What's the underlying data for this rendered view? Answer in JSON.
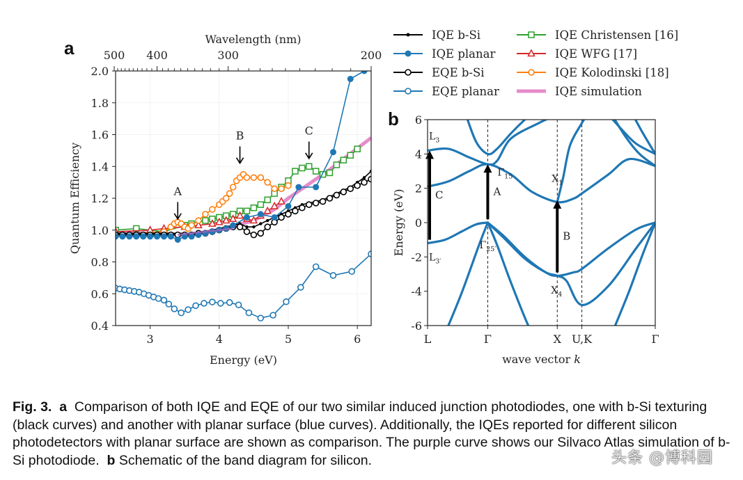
{
  "chart_data": [
    {
      "panel": "a",
      "type": "line",
      "title": "",
      "xlabel": "Energy (eV)",
      "ylabel": "Quantum Efficiency",
      "x2label": "Wavelength (nm)",
      "xlim": [
        2.5,
        6.2
      ],
      "ylim": [
        0.4,
        2.0
      ],
      "xticks": [
        3,
        4,
        5,
        6
      ],
      "yticks": [
        0.4,
        0.6,
        0.8,
        1.0,
        1.2,
        1.4,
        1.6,
        1.8,
        2.0
      ],
      "x2ticks": [
        {
          "label": "500",
          "energy": 2.48
        },
        {
          "label": "400",
          "energy": 3.1
        },
        {
          "label": "300",
          "energy": 4.13
        },
        {
          "label": "200",
          "energy": 6.2
        }
      ],
      "grid": true,
      "legend_position": "top-right (outside)",
      "annotations": [
        {
          "label": "A",
          "x": 3.4,
          "y_text": 1.22,
          "arrow_to": 1.07
        },
        {
          "label": "B",
          "x": 4.3,
          "y_text": 1.57,
          "arrow_to": 1.42
        },
        {
          "label": "C",
          "x": 5.3,
          "y_text": 1.6,
          "arrow_to": 1.45
        }
      ],
      "series": [
        {
          "name": "IQE b-Si",
          "color": "#000000",
          "marker": "dot",
          "x": [
            2.5,
            2.6,
            2.7,
            2.8,
            2.9,
            3.0,
            3.1,
            3.2,
            3.3,
            3.4,
            3.5,
            3.6,
            3.7,
            3.8,
            3.9,
            4.0,
            4.1,
            4.2,
            4.3,
            4.4,
            4.5,
            4.6,
            4.7,
            4.8,
            4.9,
            5.0,
            5.1,
            5.2,
            5.3,
            5.4,
            5.5,
            5.6,
            5.7,
            5.8,
            5.9,
            6.0,
            6.1,
            6.2
          ],
          "y": [
            0.98,
            0.98,
            0.98,
            0.98,
            0.98,
            0.98,
            0.98,
            0.98,
            0.98,
            0.98,
            0.98,
            0.98,
            0.985,
            0.99,
            1.0,
            1.01,
            1.02,
            1.03,
            1.04,
            1.02,
            1.02,
            1.04,
            1.06,
            1.08,
            1.1,
            1.12,
            1.14,
            1.16,
            1.17,
            1.18,
            1.19,
            1.21,
            1.23,
            1.25,
            1.27,
            1.3,
            1.33,
            1.37
          ]
        },
        {
          "name": "IQE planar",
          "color": "#1f77b4",
          "marker": "filled-circle",
          "x": [
            2.5,
            2.6,
            2.7,
            2.8,
            2.9,
            3.0,
            3.1,
            3.2,
            3.3,
            3.4,
            3.5,
            3.6,
            3.7,
            3.8,
            3.9,
            4.0,
            4.1,
            4.2,
            4.4,
            4.6,
            4.8,
            5.0,
            5.15,
            5.4,
            5.65,
            5.9,
            6.1
          ],
          "y": [
            0.96,
            0.96,
            0.96,
            0.96,
            0.96,
            0.96,
            0.96,
            0.96,
            0.96,
            0.94,
            0.96,
            0.96,
            0.97,
            0.98,
            0.99,
            1.0,
            1.01,
            1.03,
            1.08,
            1.1,
            1.08,
            1.15,
            1.27,
            1.27,
            1.49,
            1.95,
            2.0
          ]
        },
        {
          "name": "EQE b-Si",
          "color": "#000000",
          "marker": "open-circle",
          "x": [
            2.5,
            2.6,
            2.7,
            2.8,
            2.9,
            3.0,
            3.1,
            3.2,
            3.3,
            3.4,
            3.5,
            3.6,
            3.7,
            3.8,
            3.9,
            4.0,
            4.1,
            4.2,
            4.3,
            4.4,
            4.5,
            4.6,
            4.7,
            4.8,
            4.9,
            5.0,
            5.1,
            5.2,
            5.3,
            5.4,
            5.5,
            5.6,
            5.7,
            5.8,
            5.9,
            6.0,
            6.1,
            6.2
          ],
          "y": [
            0.97,
            0.97,
            0.97,
            0.97,
            0.97,
            0.97,
            0.97,
            0.97,
            0.97,
            0.97,
            0.97,
            0.97,
            0.98,
            0.98,
            0.99,
            1.0,
            1.01,
            1.02,
            1.02,
            0.99,
            0.97,
            0.98,
            1.02,
            1.05,
            1.08,
            1.1,
            1.12,
            1.14,
            1.16,
            1.17,
            1.18,
            1.2,
            1.22,
            1.24,
            1.26,
            1.28,
            1.3,
            1.32
          ]
        },
        {
          "name": "EQE planar",
          "color": "#1f77b4",
          "marker": "open-circle",
          "x": [
            2.5,
            2.56,
            2.63,
            2.7,
            2.77,
            2.84,
            2.91,
            2.98,
            3.05,
            3.12,
            3.2,
            3.27,
            3.35,
            3.45,
            3.55,
            3.66,
            3.78,
            3.9,
            4.02,
            4.15,
            4.28,
            4.43,
            4.6,
            4.78,
            4.97,
            5.18,
            5.4,
            5.65,
            5.92,
            6.2
          ],
          "y": [
            0.635,
            0.63,
            0.625,
            0.62,
            0.615,
            0.61,
            0.6,
            0.59,
            0.58,
            0.57,
            0.56,
            0.535,
            0.505,
            0.48,
            0.5,
            0.525,
            0.54,
            0.548,
            0.54,
            0.545,
            0.53,
            0.48,
            0.447,
            0.465,
            0.55,
            0.64,
            0.77,
            0.715,
            0.74,
            0.85
          ]
        },
        {
          "name": "IQE Christensen [16]",
          "color": "#2ca02c",
          "marker": "open-square",
          "x": [
            2.5,
            2.8,
            3.2,
            3.5,
            3.6,
            3.8,
            3.9,
            4.0,
            4.1,
            4.2,
            4.3,
            4.4,
            4.5,
            4.6,
            4.7,
            4.8,
            4.9,
            5.0,
            5.1,
            5.2,
            5.3,
            5.4,
            5.5,
            5.6,
            5.7,
            5.8,
            5.9,
            6.0
          ],
          "y": [
            1.0,
            1.01,
            0.99,
            1.03,
            1.04,
            1.06,
            1.07,
            1.08,
            1.09,
            1.1,
            1.12,
            1.12,
            1.14,
            1.16,
            1.19,
            1.23,
            1.27,
            1.31,
            1.37,
            1.39,
            1.4,
            1.37,
            1.35,
            1.36,
            1.41,
            1.44,
            1.47,
            1.51
          ]
        },
        {
          "name": "IQE WFG [17]",
          "color": "#d62728",
          "marker": "open-triangle",
          "x": [
            2.5,
            3.0,
            3.2,
            3.5,
            3.7,
            3.9,
            4.0,
            4.1,
            4.2,
            4.3,
            4.4,
            4.5,
            4.6,
            4.7,
            4.8,
            4.9
          ],
          "y": [
            0.99,
            1.0,
            1.01,
            1.02,
            1.03,
            1.04,
            1.05,
            1.06,
            1.07,
            1.09,
            1.07,
            1.06,
            1.09,
            1.12,
            1.15,
            1.18
          ]
        },
        {
          "name": "IQE Kolodinski [18]",
          "color": "#ff7f0e",
          "marker": "open-circle",
          "x": [
            2.5,
            3.2,
            3.3,
            3.35,
            3.4,
            3.45,
            3.5,
            3.55,
            3.6,
            3.7,
            3.8,
            3.9,
            4.0,
            4.05,
            4.1,
            4.15,
            4.2,
            4.25,
            4.3,
            4.35,
            4.4,
            4.5,
            4.6,
            4.7,
            4.8,
            4.9,
            5.0
          ],
          "y": [
            0.97,
            0.99,
            1.02,
            1.04,
            1.05,
            1.04,
            1.02,
            1.01,
            1.03,
            1.06,
            1.1,
            1.13,
            1.16,
            1.18,
            1.2,
            1.23,
            1.27,
            1.31,
            1.33,
            1.35,
            1.33,
            1.33,
            1.33,
            1.3,
            1.26,
            1.26,
            1.28
          ]
        },
        {
          "name": "IQE simulation",
          "color": "#e377c2",
          "marker": "none",
          "x": [
            2.5,
            3.0,
            3.5,
            4.0,
            4.5,
            4.8,
            5.0,
            5.3,
            5.6,
            5.9,
            6.2
          ],
          "y": [
            0.98,
            0.98,
            0.97,
            1.0,
            1.06,
            1.13,
            1.2,
            1.29,
            1.38,
            1.48,
            1.58
          ]
        }
      ],
      "purple_overlay_color": "#9467bd"
    },
    {
      "panel": "b",
      "type": "line",
      "title": "",
      "xlabel": "wave vector k",
      "ylabel": "Energy (eV)",
      "ylim": [
        -6,
        6
      ],
      "yticks": [
        -6,
        -4,
        -2,
        0,
        2,
        4,
        6
      ],
      "xticks": [
        "L",
        "Γ",
        "X",
        "U,K",
        "Γ"
      ],
      "k_points": {
        "L": 0.0,
        "Γ": 0.866,
        "X": 1.866,
        "U,K": 2.22,
        "Γ_end": 3.276
      },
      "grid": false,
      "band_color": "#1f77b4",
      "labels": [
        {
          "text": "L3",
          "sub": "3",
          "k": 0.0,
          "E": 4.6
        },
        {
          "text": "Γ15",
          "sub": "15",
          "k": 0.866,
          "E": 3.3
        },
        {
          "text": "X1",
          "sub": "1",
          "k": 1.866,
          "E": 2.3
        },
        {
          "text": "L3'",
          "sub": "3′",
          "k": 0.0,
          "E": -1.8
        },
        {
          "text": "Γ25'",
          "sub": "25′",
          "k": 0.866,
          "E": -1.1
        },
        {
          "text": "X4",
          "sub": "4",
          "k": 1.866,
          "E": -3.9
        }
      ],
      "transitions": [
        {
          "label": "C",
          "k": 0.03,
          "from": -1.0,
          "to": 4.2
        },
        {
          "label": "A",
          "k": 0.866,
          "from": 0.2,
          "to": 3.4
        },
        {
          "label": "B",
          "k": 1.866,
          "from": -2.9,
          "to": 1.3
        }
      ],
      "series": [
        {
          "name": "valence-1",
          "k": [
            0,
            0.25,
            0.5,
            0.7,
            0.866
          ],
          "E": [
            -1.2,
            -1.0,
            -0.5,
            -0.1,
            0.0
          ]
        },
        {
          "name": "valence-1b",
          "k": [
            0.866,
            1.1,
            1.4,
            1.7,
            1.866,
            2.1,
            2.22,
            2.6,
            3.0,
            3.276
          ],
          "E": [
            0.0,
            -0.8,
            -2.0,
            -2.9,
            -3.1,
            -2.9,
            -2.7,
            -1.5,
            -0.4,
            0.0
          ]
        },
        {
          "name": "valence-2",
          "k": [
            0.866,
            1.1,
            1.4,
            1.7,
            1.866,
            2.0,
            2.22,
            2.6,
            3.0,
            3.276
          ],
          "E": [
            0.0,
            -0.9,
            -2.1,
            -2.9,
            -3.1,
            -3.4,
            -4.8,
            -3.7,
            -1.5,
            0.0
          ]
        },
        {
          "name": "valence-3",
          "k": [
            0.866,
            1.0,
            1.2,
            1.45,
            1.55
          ],
          "E": [
            0.0,
            -1.3,
            -3.5,
            -6.0,
            -6.5
          ]
        },
        {
          "name": "valence-4",
          "k": [
            0.866,
            0.75,
            0.5,
            0.3
          ],
          "E": [
            0.0,
            -1.2,
            -4.0,
            -6.0
          ]
        },
        {
          "name": "valence-5",
          "k": [
            3.276,
            3.1,
            2.9,
            2.7
          ],
          "E": [
            0.0,
            -1.8,
            -4.0,
            -6.0
          ]
        },
        {
          "name": "conduction-1",
          "k": [
            0,
            0.3,
            0.6,
            0.866,
            1.2,
            1.5,
            1.866,
            2.1,
            2.22,
            2.6,
            2.9,
            3.276
          ],
          "E": [
            2.1,
            2.4,
            3.0,
            3.4,
            2.8,
            1.8,
            1.2,
            1.4,
            1.7,
            2.8,
            3.7,
            3.3
          ]
        },
        {
          "name": "conduction-2",
          "k": [
            0,
            0.3,
            0.6,
            0.866,
            1.0,
            1.2,
            1.6,
            1.866
          ],
          "E": [
            4.2,
            4.3,
            3.8,
            3.4,
            3.6,
            4.9,
            5.8,
            6.3
          ]
        },
        {
          "name": "conduction-3",
          "k": [
            0.55,
            0.7,
            0.866,
            1.0,
            1.2,
            1.4,
            1.5
          ],
          "E": [
            6.3,
            4.7,
            4.0,
            4.3,
            5.2,
            6.0,
            6.3
          ]
        },
        {
          "name": "conduction-4",
          "k": [
            1.866,
            1.95,
            2.05,
            2.22,
            2.3
          ],
          "E": [
            1.2,
            2.6,
            4.5,
            5.8,
            6.3
          ]
        },
        {
          "name": "conduction-5",
          "k": [
            2.6,
            2.8,
            3.0,
            3.276
          ],
          "E": [
            6.3,
            5.4,
            4.6,
            4.0
          ]
        },
        {
          "name": "conduction-6",
          "k": [
            2.65,
            2.85,
            3.05,
            3.276
          ],
          "E": [
            6.3,
            5.0,
            4.0,
            3.3
          ]
        },
        {
          "name": "conduction-7",
          "k": [
            2.95,
            3.1,
            3.276
          ],
          "E": [
            6.3,
            5.2,
            4.0
          ]
        }
      ]
    }
  ],
  "panel_labels": {
    "a": "a",
    "b": "b"
  },
  "caption": {
    "fig_label": "Fig. 3.",
    "a_label": "a",
    "a_text": "Comparison of both IQE and EQE of our two similar induced junction photodiodes, one with b-Si texturing (black curves) and another with planar surface (blue curves).  Additionally,  the IQEs reported for different silicon photodetectors with planar surface are shown as comparison. The purple curve shows our Silvaco Atlas simulation of b-Si photodiode.",
    "b_label": "b",
    "b_text": "Schematic of the band diagram for silicon."
  },
  "watermark": "头条 @博科园"
}
